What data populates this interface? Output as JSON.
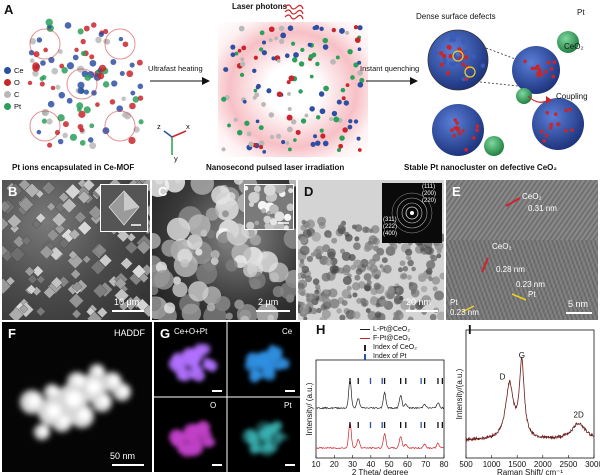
{
  "panel_a": {
    "label": "A",
    "laser_photons": "Laser photons",
    "dense_defects": "Dense surface defects",
    "legend": [
      "Ce",
      "O",
      "C",
      "Pt"
    ],
    "legend_colors": [
      "#2d4fa3",
      "#c8262a",
      "#b8b8b8",
      "#2aa05a"
    ],
    "arrow1": "Ultrafast heating",
    "arrow2": "Instant quenching",
    "pt_label": "Pt",
    "ceo2_label": "CeO₂",
    "coupling": "Coupling",
    "axis_z": "z",
    "axis_x": "x",
    "axis_y": "y",
    "caption1": "Pt ions encapsulated in Ce-MOF",
    "caption2": "Nanosecond pulsed laser irradiation",
    "caption3": "Stable Pt nanocluster on defective CeO₂"
  },
  "panel_b": {
    "label": "B",
    "scale": "10 μm"
  },
  "panel_c": {
    "label": "C",
    "scale": "2 μm"
  },
  "panel_d": {
    "label": "D",
    "scale": "20 nm",
    "rings": [
      "(111)",
      "(200)",
      "(220)",
      "(311)",
      "(222)",
      "(400)"
    ]
  },
  "panel_e": {
    "label": "E",
    "annotations": [
      "CeO₂",
      "0.31 nm",
      "CeO₂",
      "0.28 nm",
      "0.23 nm",
      "Pt",
      "Pt",
      "0.23 nm"
    ],
    "scale": "5 nm"
  },
  "panel_f": {
    "label": "F",
    "title": "HADDF",
    "scale": "50 nm"
  },
  "panel_g": {
    "label": "G",
    "maps": [
      "Ce+O+Pt",
      "Ce",
      "O",
      "Pt"
    ]
  },
  "panel_h": {
    "label": "H",
    "legend": [
      "L-Pt@CeO₂",
      "F-Pt@CeO₂",
      "Index of CeO₂",
      "Index of Pt"
    ],
    "xlabel": "2 Theta/ degree",
    "ylabel": "Intensity/ (a.u.)"
  },
  "panel_i": {
    "label": "I",
    "peaks": [
      "D",
      "G",
      "2D"
    ],
    "xlabel": "Raman Shift/ cm⁻¹",
    "ylabel": "Intensity/(a.u.)"
  },
  "chart_data": [
    {
      "type": "line",
      "panel": "H",
      "xlabel": "2 Theta/ degree",
      "ylabel": "Intensity/ (a.u.)",
      "xlim": [
        10,
        80
      ],
      "xticks": [
        10,
        20,
        30,
        40,
        50,
        60,
        70,
        80
      ],
      "series": [
        {
          "name": "L-Pt@CeO₂",
          "color": "#222222",
          "peaks_x": [
            28.6,
            33.1,
            47.5,
            56.3,
            59.1,
            69.4,
            76.7
          ]
        },
        {
          "name": "F-Pt@CeO₂",
          "color": "#d0212a",
          "peaks_x": [
            28.6,
            33.1,
            47.5,
            56.3,
            59.1,
            69.4,
            76.7
          ]
        }
      ],
      "reference_ticks": {
        "Index of CeO₂": [
          28.6,
          33.1,
          47.5,
          56.3,
          59.1,
          69.4,
          76.7,
          79.1
        ],
        "Index of Pt": [
          39.8,
          46.2,
          67.5
        ]
      }
    },
    {
      "type": "line",
      "panel": "I",
      "xlabel": "Raman Shift/ cm⁻¹",
      "ylabel": "Intensity/(a.u.)",
      "xlim": [
        500,
        3000
      ],
      "xticks": [
        500,
        1000,
        1500,
        2000,
        2500,
        3000
      ],
      "series": [
        {
          "name": "",
          "color": "#6b1a1a",
          "peaks": [
            {
              "label": "D",
              "x": 1350,
              "y": 0.72
            },
            {
              "label": "G",
              "x": 1590,
              "y": 1.0
            },
            {
              "label": "2D",
              "x": 2700,
              "y": 0.22
            }
          ]
        }
      ]
    }
  ]
}
